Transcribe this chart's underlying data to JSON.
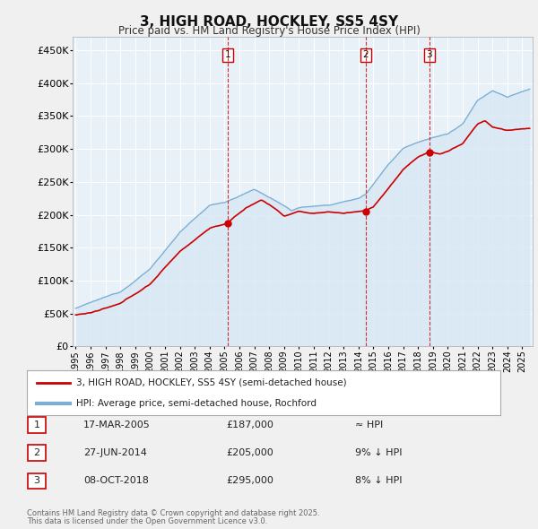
{
  "title": "3, HIGH ROAD, HOCKLEY, SS5 4SY",
  "subtitle": "Price paid vs. HM Land Registry's House Price Index (HPI)",
  "ylim": [
    0,
    470000
  ],
  "yticks": [
    0,
    50000,
    100000,
    150000,
    200000,
    250000,
    300000,
    350000,
    400000,
    450000
  ],
  "ytick_labels": [
    "£0",
    "£50K",
    "£100K",
    "£150K",
    "£200K",
    "£250K",
    "£300K",
    "£350K",
    "£400K",
    "£450K"
  ],
  "house_color": "#cc0000",
  "hpi_color": "#7bafd4",
  "hpi_fill_color": "#d8e8f5",
  "legend1": "3, HIGH ROAD, HOCKLEY, SS5 4SY (semi-detached house)",
  "legend2": "HPI: Average price, semi-detached house, Rochford",
  "sale1_date": "17-MAR-2005",
  "sale1_price": 187000,
  "sale1_hpi": "≈ HPI",
  "sale1_year": 2005.21,
  "sale2_date": "27-JUN-2014",
  "sale2_price": 205000,
  "sale2_hpi": "9% ↓ HPI",
  "sale2_year": 2014.49,
  "sale3_date": "08-OCT-2018",
  "sale3_price": 295000,
  "sale3_hpi": "8% ↓ HPI",
  "sale3_year": 2018.77,
  "footer1": "Contains HM Land Registry data © Crown copyright and database right 2025.",
  "footer2": "This data is licensed under the Open Government Licence v3.0.",
  "background_color": "#f0f0f0",
  "plot_bg_color": "#e8f0f8",
  "grid_color": "#ffffff",
  "vline_color": "#cc0000"
}
